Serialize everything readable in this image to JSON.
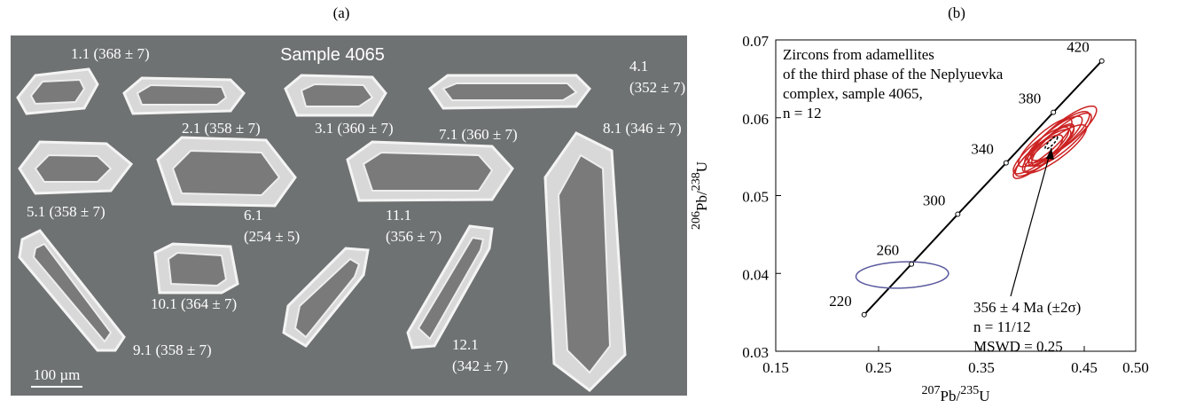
{
  "panel_a": {
    "title": "(a)",
    "sample": "Sample 4065",
    "scale_bar": "100 µm",
    "labels": [
      "1.1 (368 ± 7)",
      "2.1 (358 ± 7)",
      "3.1 (360 ± 7)",
      "4.1",
      "(352 ± 7)",
      "8.1 (346 ± 7)",
      "7.1 (360 ± 7)",
      "5.1 (358 ± 7)",
      "6.1",
      "(254 ± 5)",
      "11.1",
      "(356 ± 7)",
      "10.1 (364 ± 7)",
      "9.1 (358 ± 7)",
      "12.1",
      "(342 ± 7)"
    ]
  },
  "chart_data": {
    "type": "concordia",
    "title": "(b)",
    "xlabel": [
      "207",
      "Pb/",
      "235",
      "U"
    ],
    "ylabel": [
      "206",
      "Pb/",
      "238",
      "U"
    ],
    "xlim": [
      0.15,
      0.5
    ],
    "ylim": [
      0.03,
      0.07
    ],
    "xticks": [
      0.15,
      0.25,
      0.35,
      0.45,
      {
        "value": 0.5,
        "label": "0.50"
      }
    ],
    "yticks": [
      0.03,
      0.04,
      0.05,
      0.06,
      0.07
    ],
    "annotation": [
      "Zircons from adamellites",
      "of the third phase of the Neplyuevka",
      "complex, sample 4065,",
      "n = 12"
    ],
    "result": [
      "356 ± 4 Ma (±2σ)",
      "n = 11/12",
      "MSWD = 0.25"
    ],
    "concordia": {
      "ages": [
        220,
        260,
        300,
        340,
        380,
        420
      ],
      "x": [
        0.236,
        0.282,
        0.327,
        0.374,
        0.42,
        0.467
      ],
      "y": [
        0.0347,
        0.0412,
        0.0476,
        0.0542,
        0.0607,
        0.0673
      ]
    },
    "ellipses": [
      {
        "x": 0.273,
        "y": 0.0398,
        "x_err": 0.045,
        "y_err": 0.0017,
        "color": "#5a5a9e"
      },
      {
        "x": 0.415,
        "y": 0.056,
        "x_err": 0.025,
        "y_err": 0.003,
        "color": "#cc2222"
      },
      {
        "x": 0.42,
        "y": 0.057,
        "x_err": 0.028,
        "y_err": 0.0032,
        "color": "#cc2222"
      },
      {
        "x": 0.425,
        "y": 0.0575,
        "x_err": 0.03,
        "y_err": 0.0033,
        "color": "#cc2222"
      },
      {
        "x": 0.41,
        "y": 0.0555,
        "x_err": 0.027,
        "y_err": 0.003,
        "color": "#cc2222"
      },
      {
        "x": 0.43,
        "y": 0.058,
        "x_err": 0.032,
        "y_err": 0.0035,
        "color": "#cc2222"
      },
      {
        "x": 0.405,
        "y": 0.055,
        "x_err": 0.024,
        "y_err": 0.0028,
        "color": "#cc2222"
      },
      {
        "x": 0.418,
        "y": 0.0565,
        "x_err": 0.022,
        "y_err": 0.0027,
        "color": "#cc2222"
      },
      {
        "x": 0.422,
        "y": 0.056,
        "x_err": 0.03,
        "y_err": 0.0031,
        "color": "#cc2222"
      },
      {
        "x": 0.412,
        "y": 0.0568,
        "x_err": 0.026,
        "y_err": 0.0031,
        "color": "#cc2222"
      },
      {
        "x": 0.428,
        "y": 0.0572,
        "x_err": 0.029,
        "y_err": 0.0034,
        "color": "#cc2222"
      },
      {
        "x": 0.408,
        "y": 0.0558,
        "x_err": 0.027,
        "y_err": 0.003,
        "color": "#cc2222"
      }
    ],
    "mean": {
      "x": 0.418,
      "y": 0.0568,
      "x_err": 0.006,
      "y_err": 0.0008
    }
  }
}
